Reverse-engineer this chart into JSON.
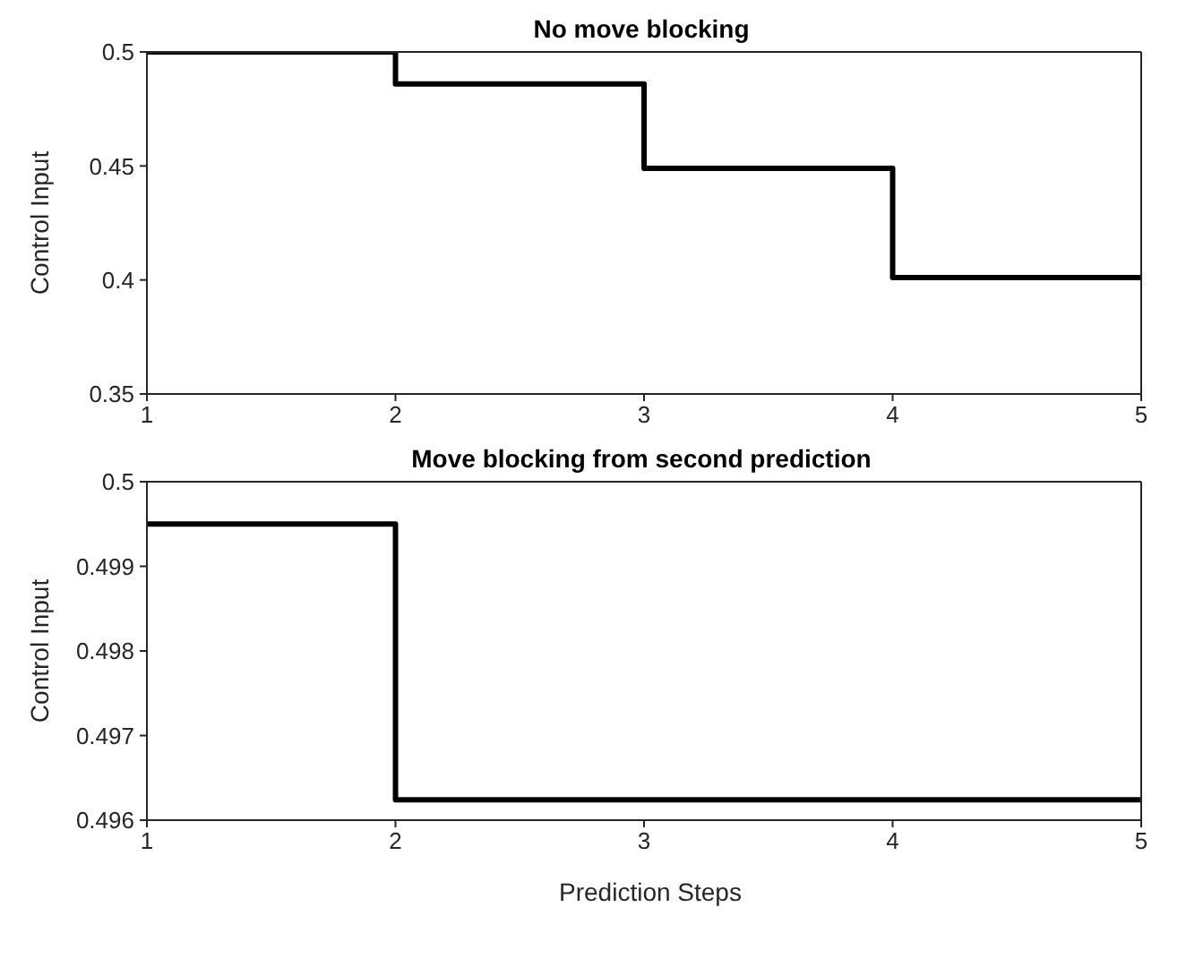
{
  "chart_data": [
    {
      "type": "step",
      "title": "No move blocking",
      "ylabel": "Control Input",
      "x": [
        1,
        2,
        3,
        4,
        5
      ],
      "series": [
        {
          "color": "#000000",
          "values": [
            0.5,
            0.486,
            0.449,
            0.401,
            0.401
          ]
        }
      ],
      "xlim": [
        1,
        5
      ],
      "xticks": [
        1,
        2,
        3,
        4,
        5
      ],
      "ylim": [
        0.35,
        0.5
      ],
      "yticks": [
        0.35,
        0.45,
        0.4,
        0.5
      ],
      "grid": false,
      "legend": false,
      "marker": "none",
      "line_style": "solid"
    },
    {
      "type": "step",
      "title": "Move blocking from second prediction",
      "xlabel": "Prediction Steps",
      "ylabel": "Control Input",
      "x": [
        1,
        2,
        3,
        4,
        5
      ],
      "series": [
        {
          "color": "#000000",
          "values": [
            0.4995,
            0.49624,
            0.49624,
            0.49624,
            0.49624
          ]
        }
      ],
      "xlim": [
        1,
        5
      ],
      "xticks": [
        1,
        2,
        3,
        4,
        5
      ],
      "ylim": [
        0.496,
        0.5
      ],
      "yticks": [
        0.496,
        0.497,
        0.498,
        0.499,
        0.5
      ],
      "grid": false,
      "legend": false,
      "marker": "none",
      "line_style": "solid"
    }
  ]
}
